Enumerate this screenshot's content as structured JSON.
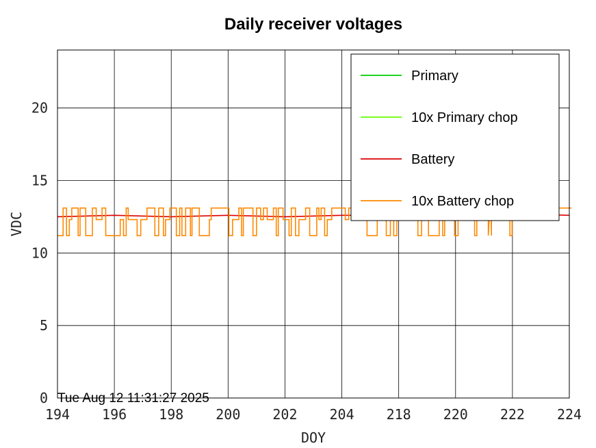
{
  "chart_data": {
    "type": "line",
    "title": "Daily receiver voltages",
    "xlabel": "DOY",
    "ylabel": "VDC",
    "ylim": [
      0,
      24
    ],
    "yticks": [
      "0",
      "5",
      "10",
      "15",
      "20"
    ],
    "xticks": [
      "194",
      "196",
      "198",
      "200",
      "202",
      "204",
      "218",
      "220",
      "222",
      "224"
    ],
    "grid": true,
    "legend_position": "top-right",
    "timestamp": "Tue Aug 12 11:31:27 2025",
    "series": [
      {
        "name": "Primary",
        "color": "#00cc00",
        "values": []
      },
      {
        "name": "10x Primary chop",
        "color": "#66ff00",
        "values": []
      },
      {
        "name": "Battery",
        "color": "#dd0000",
        "values": [
          12.5,
          12.6,
          12.5,
          12.6,
          12.5,
          12.6,
          12.6,
          12.6,
          12.7,
          12.6
        ]
      },
      {
        "name": "10x Battery chop",
        "color": "#ff8800",
        "values": [
          12.2,
          11.5,
          13.1,
          11.2,
          13.0,
          12.1,
          13.1,
          11.3,
          15.2,
          12.4
        ]
      }
    ]
  }
}
